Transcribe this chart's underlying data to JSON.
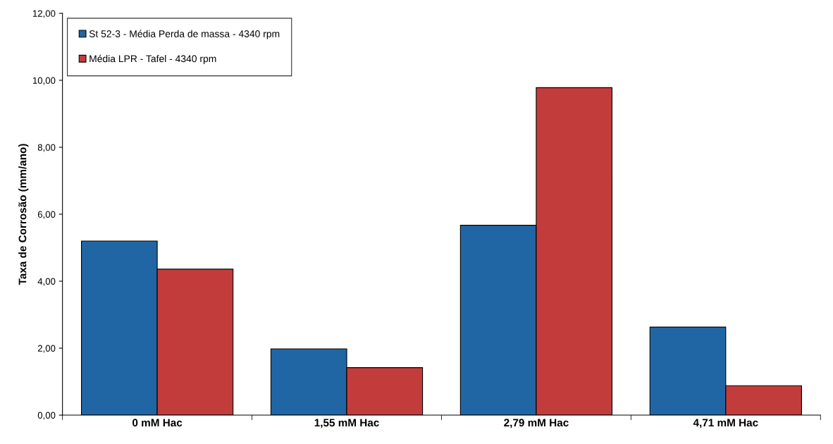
{
  "chart_data": {
    "type": "bar",
    "ylabel": "Taxa de Corrosão (mm/ano)",
    "categories": [
      "0 mM Hac",
      "1,55 mM Hac",
      "2,79 mM Hac",
      "4,71 mM Hac"
    ],
    "series": [
      {
        "name": "St 52-3 - Média Perda de massa - 4340 rpm",
        "color": "#2166a4",
        "values": [
          5.2,
          1.98,
          5.67,
          2.63
        ]
      },
      {
        "name": "Média LPR - Tafel - 4340 rpm",
        "color": "#c33c3c",
        "values": [
          4.36,
          1.42,
          9.78,
          0.88
        ]
      }
    ],
    "ylim": [
      0,
      12
    ],
    "yticks": [
      {
        "value": 0,
        "label": "0,00"
      },
      {
        "value": 2,
        "label": "2,00"
      },
      {
        "value": 4,
        "label": "4,00"
      },
      {
        "value": 6,
        "label": "6,00"
      },
      {
        "value": 8,
        "label": "8,00"
      },
      {
        "value": 10,
        "label": "10,00"
      },
      {
        "value": 12,
        "label": "12,00"
      }
    ],
    "grid": false,
    "legend": "top left"
  }
}
